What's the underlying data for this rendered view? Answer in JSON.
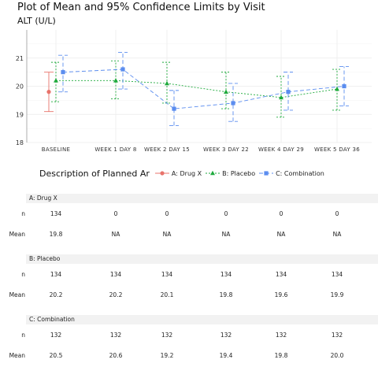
{
  "title": "Plot of Mean and 95% Confidence Limits by Visit",
  "subtitle": "ALT (U/L)",
  "chart_data": {
    "type": "line",
    "categories": [
      "BASELINE",
      "WEEK 1 DAY 8",
      "WEEK 2 DAY 15",
      "WEEK 3 DAY 22",
      "WEEK 4 DAY 29",
      "WEEK 5 DAY 36"
    ],
    "ylim": [
      18,
      22
    ],
    "yticks": [
      18,
      19,
      20,
      21
    ],
    "grid": true,
    "series": [
      {
        "name": "A: Drug X",
        "color": "#e8736b",
        "marker": "circle",
        "line": "solid",
        "mean": [
          19.8,
          null,
          null,
          null,
          null,
          null
        ],
        "lower": [
          19.1,
          null,
          null,
          null,
          null,
          null
        ],
        "upper": [
          20.5,
          null,
          null,
          null,
          null,
          null
        ]
      },
      {
        "name": "B: Placebo",
        "color": "#1eaa3c",
        "marker": "triangle",
        "line": "dotted",
        "mean": [
          20.2,
          20.2,
          20.1,
          19.8,
          19.6,
          19.9
        ],
        "lower": [
          19.45,
          19.55,
          19.4,
          19.2,
          18.9,
          19.15
        ],
        "upper": [
          20.85,
          20.9,
          20.85,
          20.5,
          20.35,
          20.6
        ]
      },
      {
        "name": "C: Combination",
        "color": "#5b8def",
        "marker": "square",
        "line": "dashed",
        "mean": [
          20.5,
          20.6,
          19.2,
          19.4,
          19.8,
          20.0
        ],
        "lower": [
          19.8,
          19.9,
          18.6,
          18.75,
          19.15,
          19.3
        ],
        "upper": [
          21.1,
          21.2,
          19.85,
          20.1,
          20.5,
          20.7
        ]
      }
    ]
  },
  "legend": {
    "title": "Description of Planned Ar"
  },
  "table": {
    "groups": [
      {
        "name": "A: Drug X",
        "rows": [
          {
            "label": "n",
            "values": [
              "134",
              "0",
              "0",
              "0",
              "0",
              "0"
            ]
          },
          {
            "label": "Mean",
            "values": [
              "19.8",
              "NA",
              "NA",
              "NA",
              "NA",
              "NA"
            ]
          }
        ]
      },
      {
        "name": "B: Placebo",
        "rows": [
          {
            "label": "n",
            "values": [
              "134",
              "134",
              "134",
              "134",
              "134",
              "134"
            ]
          },
          {
            "label": "Mean",
            "values": [
              "20.2",
              "20.2",
              "20.1",
              "19.8",
              "19.6",
              "19.9"
            ]
          }
        ]
      },
      {
        "name": "C: Combination",
        "rows": [
          {
            "label": "n",
            "values": [
              "132",
              "132",
              "132",
              "132",
              "132",
              "132"
            ]
          },
          {
            "label": "Mean",
            "values": [
              "20.5",
              "20.6",
              "19.2",
              "19.4",
              "19.8",
              "20.0"
            ]
          }
        ]
      }
    ]
  }
}
